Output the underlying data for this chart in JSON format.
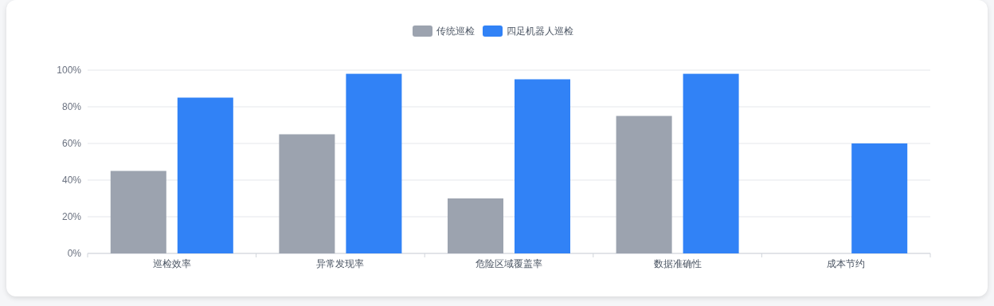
{
  "chart_data": {
    "type": "bar",
    "categories": [
      "巡检效率",
      "异常发现率",
      "危险区域覆盖率",
      "数据准确性",
      "成本节约"
    ],
    "series": [
      {
        "name": "传统巡检",
        "color": "#9ca3af",
        "values": [
          45,
          65,
          30,
          75,
          0
        ]
      },
      {
        "name": "四足机器人巡检",
        "color": "#3182f6",
        "values": [
          85,
          98,
          95,
          98,
          60
        ]
      }
    ],
    "ylim": [
      0,
      100
    ],
    "yticks": [
      {
        "value": 0,
        "label": "0%"
      },
      {
        "value": 20,
        "label": "20%"
      },
      {
        "value": 40,
        "label": "40%"
      },
      {
        "value": 60,
        "label": "60%"
      },
      {
        "value": 80,
        "label": "80%"
      },
      {
        "value": 100,
        "label": "100%"
      }
    ],
    "grid": "y",
    "legend": "top"
  }
}
